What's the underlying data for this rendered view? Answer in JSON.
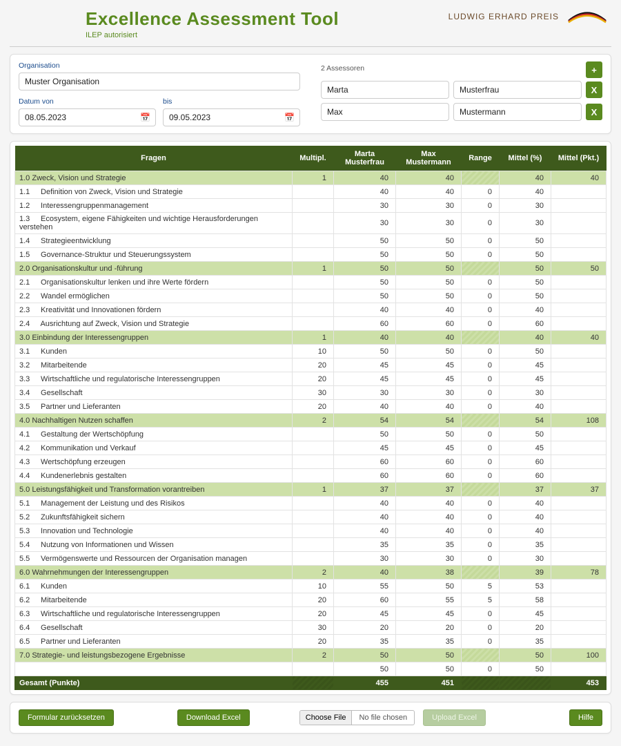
{
  "header": {
    "title": "Excellence Assessment Tool",
    "subtitle": "ILEP autorisiert",
    "logo_text": "LUDWIG ERHARD PREIS"
  },
  "form": {
    "org_label": "Organisation",
    "org_value": "Muster Organisation",
    "date_from_label": "Datum von",
    "date_from_value": "08.05.2023",
    "date_to_label": "bis",
    "date_to_value": "09.05.2023",
    "assessor_count_label": "2 Assessoren",
    "assessors": [
      {
        "first": "Marta",
        "last": "Musterfrau"
      },
      {
        "first": "Max",
        "last": "Mustermann"
      }
    ]
  },
  "table": {
    "headers": {
      "fragen": "Fragen",
      "multipl": "Multipl.",
      "a1": "Marta Musterfrau",
      "a2": "Max Mustermann",
      "range": "Range",
      "mittel_pct": "Mittel (%)",
      "mittel_pkt": "Mittel (Pkt.)"
    },
    "col_widths": [
      "*",
      "60",
      "90",
      "95",
      "55",
      "75",
      "80"
    ],
    "colors": {
      "header_bg": "#3e5a1c",
      "section_bg": "#cde0a8",
      "accent": "#5a8a1f"
    },
    "rows": [
      {
        "type": "section",
        "num": "1.0",
        "label": "Zweck, Vision und Strategie",
        "multipl": "1",
        "a1": "40",
        "a2": "40",
        "range": "",
        "mittel": "40",
        "pkt": "40"
      },
      {
        "type": "item",
        "num": "1.1",
        "label": "Definition von Zweck, Vision und Strategie",
        "a1": "40",
        "a2": "40",
        "range": "0",
        "mittel": "40"
      },
      {
        "type": "item",
        "num": "1.2",
        "label": "Interessengruppenmanagement",
        "a1": "30",
        "a2": "30",
        "range": "0",
        "mittel": "30"
      },
      {
        "type": "item",
        "num": "1.3",
        "label": "Ecosystem, eigene Fähigkeiten und wichtige Herausforderungen verstehen",
        "a1": "30",
        "a2": "30",
        "range": "0",
        "mittel": "30"
      },
      {
        "type": "item",
        "num": "1.4",
        "label": "Strategieentwicklung",
        "a1": "50",
        "a2": "50",
        "range": "0",
        "mittel": "50"
      },
      {
        "type": "item",
        "num": "1.5",
        "label": "Governance-Struktur und Steuerungssystem",
        "a1": "50",
        "a2": "50",
        "range": "0",
        "mittel": "50"
      },
      {
        "type": "section",
        "num": "2.0",
        "label": "Organisationskultur und -führung",
        "multipl": "1",
        "a1": "50",
        "a2": "50",
        "range": "",
        "mittel": "50",
        "pkt": "50"
      },
      {
        "type": "item",
        "num": "2.1",
        "label": "Organisationskultur lenken und ihre Werte fördern",
        "a1": "50",
        "a2": "50",
        "range": "0",
        "mittel": "50"
      },
      {
        "type": "item",
        "num": "2.2",
        "label": "Wandel ermöglichen",
        "a1": "50",
        "a2": "50",
        "range": "0",
        "mittel": "50"
      },
      {
        "type": "item",
        "num": "2.3",
        "label": "Kreativität und Innovationen fördern",
        "a1": "40",
        "a2": "40",
        "range": "0",
        "mittel": "40"
      },
      {
        "type": "item",
        "num": "2.4",
        "label": "Ausrichtung auf Zweck, Vision und Strategie",
        "a1": "60",
        "a2": "60",
        "range": "0",
        "mittel": "60"
      },
      {
        "type": "section",
        "num": "3.0",
        "label": "Einbindung der Interessengruppen",
        "multipl": "1",
        "a1": "40",
        "a2": "40",
        "range": "",
        "mittel": "40",
        "pkt": "40"
      },
      {
        "type": "item",
        "num": "3.1",
        "label": "Kunden",
        "multipl": "10",
        "a1": "50",
        "a2": "50",
        "range": "0",
        "mittel": "50"
      },
      {
        "type": "item",
        "num": "3.2",
        "label": "Mitarbeitende",
        "multipl": "20",
        "a1": "45",
        "a2": "45",
        "range": "0",
        "mittel": "45"
      },
      {
        "type": "item",
        "num": "3.3",
        "label": "Wirtschaftliche und regulatorische Interessengruppen",
        "multipl": "20",
        "a1": "45",
        "a2": "45",
        "range": "0",
        "mittel": "45"
      },
      {
        "type": "item",
        "num": "3.4",
        "label": "Gesellschaft",
        "multipl": "30",
        "a1": "30",
        "a2": "30",
        "range": "0",
        "mittel": "30"
      },
      {
        "type": "item",
        "num": "3.5",
        "label": "Partner und Lieferanten",
        "multipl": "20",
        "a1": "40",
        "a2": "40",
        "range": "0",
        "mittel": "40"
      },
      {
        "type": "section",
        "num": "4.0",
        "label": "Nachhaltigen Nutzen schaffen",
        "multipl": "2",
        "a1": "54",
        "a2": "54",
        "range": "",
        "mittel": "54",
        "pkt": "108"
      },
      {
        "type": "item",
        "num": "4.1",
        "label": "Gestaltung der Wertschöpfung",
        "a1": "50",
        "a2": "50",
        "range": "0",
        "mittel": "50"
      },
      {
        "type": "item",
        "num": "4.2",
        "label": "Kommunikation und Verkauf",
        "a1": "45",
        "a2": "45",
        "range": "0",
        "mittel": "45"
      },
      {
        "type": "item",
        "num": "4.3",
        "label": "Wertschöpfung erzeugen",
        "a1": "60",
        "a2": "60",
        "range": "0",
        "mittel": "60"
      },
      {
        "type": "item",
        "num": "4.4",
        "label": "Kundenerlebnis gestalten",
        "a1": "60",
        "a2": "60",
        "range": "0",
        "mittel": "60"
      },
      {
        "type": "section",
        "num": "5.0",
        "label": "Leistungsfähigkeit und Transformation vorantreiben",
        "multipl": "1",
        "a1": "37",
        "a2": "37",
        "range": "",
        "mittel": "37",
        "pkt": "37"
      },
      {
        "type": "item",
        "num": "5.1",
        "label": "Management der Leistung und des Risikos",
        "a1": "40",
        "a2": "40",
        "range": "0",
        "mittel": "40"
      },
      {
        "type": "item",
        "num": "5.2",
        "label": "Zukunftsfähigkeit sichern",
        "a1": "40",
        "a2": "40",
        "range": "0",
        "mittel": "40"
      },
      {
        "type": "item",
        "num": "5.3",
        "label": "Innovation und Technologie",
        "a1": "40",
        "a2": "40",
        "range": "0",
        "mittel": "40"
      },
      {
        "type": "item",
        "num": "5.4",
        "label": "Nutzung von Informationen und Wissen",
        "a1": "35",
        "a2": "35",
        "range": "0",
        "mittel": "35"
      },
      {
        "type": "item",
        "num": "5.5",
        "label": "Vermögenswerte und Ressourcen der Organisation managen",
        "a1": "30",
        "a2": "30",
        "range": "0",
        "mittel": "30"
      },
      {
        "type": "section",
        "num": "6.0",
        "label": "Wahrnehmungen der Interessengruppen",
        "multipl": "2",
        "a1": "40",
        "a2": "38",
        "range": "",
        "mittel": "39",
        "pkt": "78"
      },
      {
        "type": "item",
        "num": "6.1",
        "label": "Kunden",
        "multipl": "10",
        "a1": "55",
        "a2": "50",
        "range": "5",
        "mittel": "53"
      },
      {
        "type": "item",
        "num": "6.2",
        "label": "Mitarbeitende",
        "multipl": "20",
        "a1": "60",
        "a2": "55",
        "range": "5",
        "mittel": "58"
      },
      {
        "type": "item",
        "num": "6.3",
        "label": "Wirtschaftliche und regulatorische Interessengruppen",
        "multipl": "20",
        "a1": "45",
        "a2": "45",
        "range": "0",
        "mittel": "45"
      },
      {
        "type": "item",
        "num": "6.4",
        "label": "Gesellschaft",
        "multipl": "30",
        "a1": "20",
        "a2": "20",
        "range": "0",
        "mittel": "20"
      },
      {
        "type": "item",
        "num": "6.5",
        "label": "Partner und Lieferanten",
        "multipl": "20",
        "a1": "35",
        "a2": "35",
        "range": "0",
        "mittel": "35"
      },
      {
        "type": "section",
        "num": "7.0",
        "label": "Strategie- und leistungsbezogene Ergebnisse",
        "multipl": "2",
        "a1": "50",
        "a2": "50",
        "range": "",
        "mittel": "50",
        "pkt": "100"
      },
      {
        "type": "item",
        "num": "",
        "label": "",
        "a1": "50",
        "a2": "50",
        "range": "0",
        "mittel": "50"
      }
    ],
    "total": {
      "label": "Gesamt (Punkte)",
      "a1": "455",
      "a2": "451",
      "pkt": "453"
    }
  },
  "footer": {
    "reset": "Formular zurücksetzen",
    "download": "Download Excel",
    "choose": "Choose File",
    "nofile": "No file chosen",
    "upload": "Upload Excel",
    "help": "Hilfe"
  }
}
